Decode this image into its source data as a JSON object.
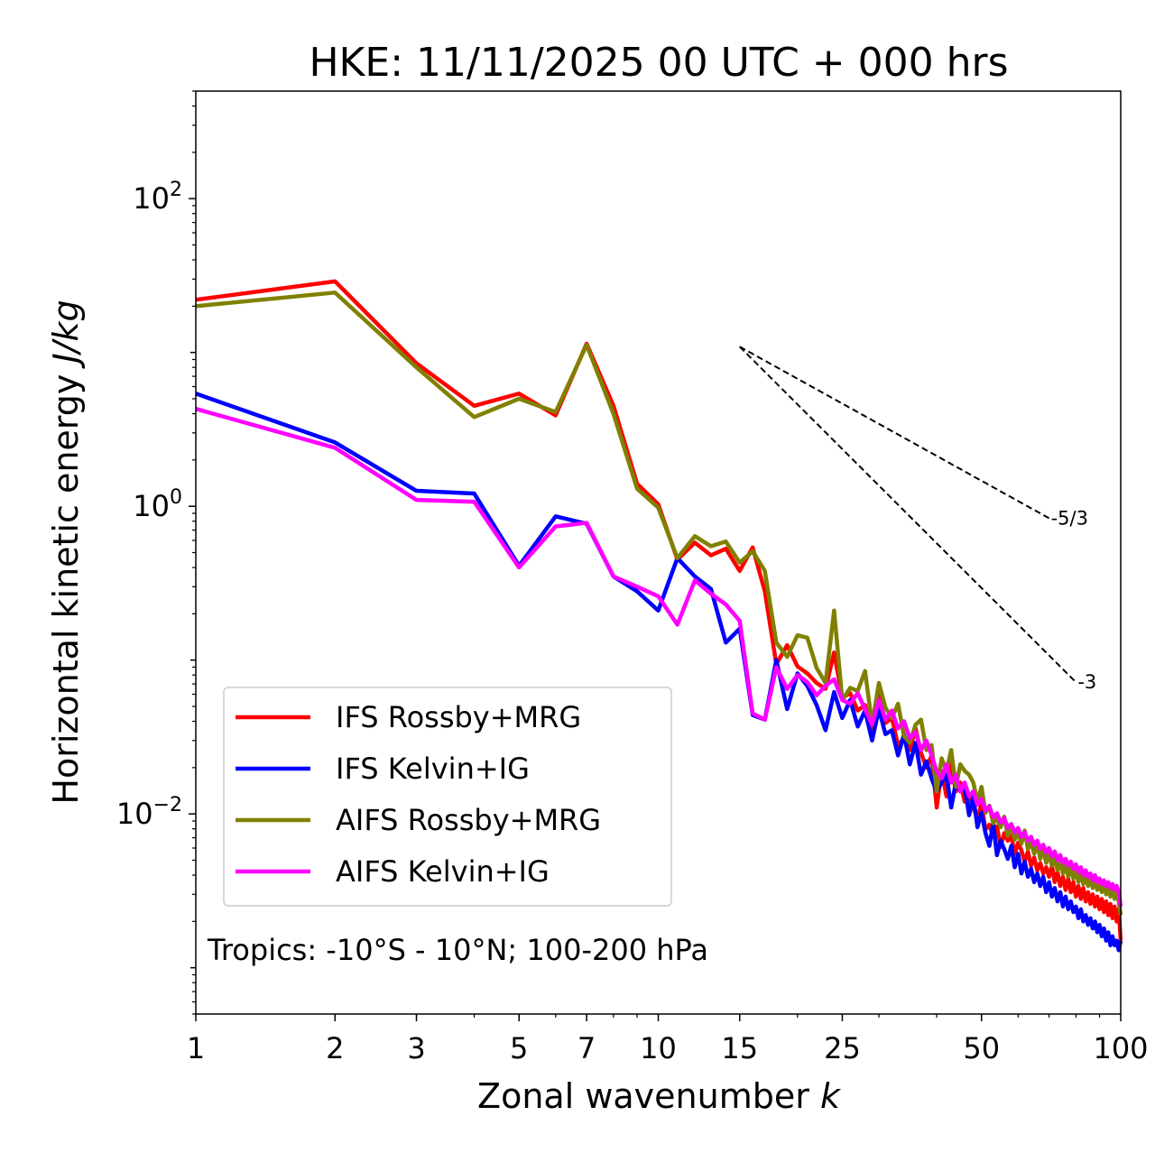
{
  "chart_data": {
    "type": "line",
    "scale": "log-log",
    "title": "HKE: 11/11/2025 00 UTC + 000 hrs",
    "xlabel_text": "Zonal wavenumber ",
    "xlabel_var": "k",
    "ylabel_text": "Horizontal kinetic energy ",
    "ylabel_units": "J/kg",
    "xlim": [
      1,
      100
    ],
    "ylim": [
      0.0005,
      500
    ],
    "x_ticks": [
      {
        "value": 1,
        "label": "1"
      },
      {
        "value": 2,
        "label": "2"
      },
      {
        "value": 3,
        "label": "3"
      },
      {
        "value": 5,
        "label": "5"
      },
      {
        "value": 7,
        "label": "7"
      },
      {
        "value": 10,
        "label": "10"
      },
      {
        "value": 15,
        "label": "15"
      },
      {
        "value": 25,
        "label": "25"
      },
      {
        "value": 50,
        "label": "50"
      },
      {
        "value": 100,
        "label": "100"
      }
    ],
    "y_ticks": [
      {
        "value": 0.01,
        "base": "10",
        "exp": "−2"
      },
      {
        "value": 1,
        "base": "10",
        "exp": "0"
      },
      {
        "value": 100,
        "base": "10",
        "exp": "2"
      }
    ],
    "annotation": "Tropics: -10°S - 10°N; 100-200 hPa",
    "reference_lines": [
      {
        "label": "-5/3",
        "slope": -1.6667,
        "x_start": 15,
        "x_end": 70,
        "y_start": 10.9
      },
      {
        "label": "-3",
        "slope": -3,
        "x_start": 15,
        "x_end": 80,
        "y_start": 10.9
      }
    ],
    "legend_location": "lower-left",
    "series": [
      {
        "name": "IFS Rossby+MRG",
        "color": "#ff0000",
        "values": [
          22.0,
          29.0,
          8.5,
          4.5,
          5.4,
          3.9,
          11.4,
          4.5,
          1.4,
          1.03,
          0.45,
          0.58,
          0.48,
          0.53,
          0.38,
          0.54,
          0.28,
          0.094,
          0.125,
          0.091,
          0.082,
          0.071,
          0.065,
          0.112,
          0.057,
          0.061,
          0.047,
          0.051,
          0.034,
          0.059,
          0.039,
          0.042,
          0.028,
          0.031,
          0.026,
          0.036,
          0.025,
          0.02,
          0.024,
          0.011,
          0.019,
          0.013,
          0.021,
          0.014,
          0.016,
          0.012,
          0.013,
          0.011,
          0.0093,
          0.0117,
          0.0079,
          0.0085,
          0.0071,
          0.0083,
          0.0061,
          0.0075,
          0.0067,
          0.0072,
          0.0055,
          0.0065,
          0.0058,
          0.0049,
          0.0057,
          0.0046,
          0.0052,
          0.0043,
          0.0048,
          0.0041,
          0.0045,
          0.0039,
          0.0046,
          0.0036,
          0.0042,
          0.0034,
          0.0039,
          0.0032,
          0.0038,
          0.0031,
          0.0036,
          0.0029,
          0.0034,
          0.0028,
          0.0033,
          0.0027,
          0.0031,
          0.0026,
          0.003,
          0.0025,
          0.0029,
          0.0024,
          0.0028,
          0.0023,
          0.0027,
          0.0022,
          0.0026,
          0.0021,
          0.0025,
          0.002,
          0.0024,
          0.0015
        ]
      },
      {
        "name": "IFS Kelvin+IG",
        "color": "#0000ff",
        "values": [
          5.4,
          2.6,
          1.26,
          1.21,
          0.41,
          0.86,
          0.77,
          0.35,
          0.28,
          0.21,
          0.46,
          0.35,
          0.29,
          0.13,
          0.16,
          0.044,
          0.041,
          0.1,
          0.048,
          0.082,
          0.068,
          0.051,
          0.035,
          0.062,
          0.042,
          0.055,
          0.037,
          0.047,
          0.03,
          0.048,
          0.033,
          0.035,
          0.024,
          0.033,
          0.021,
          0.029,
          0.018,
          0.022,
          0.017,
          0.014,
          0.016,
          0.018,
          0.011,
          0.016,
          0.014,
          0.015,
          0.0098,
          0.013,
          0.0082,
          0.0102,
          0.0075,
          0.0062,
          0.0087,
          0.0054,
          0.0067,
          0.0059,
          0.0051,
          0.0062,
          0.0045,
          0.0055,
          0.0041,
          0.0049,
          0.0039,
          0.0044,
          0.0036,
          0.0041,
          0.0034,
          0.0039,
          0.0031,
          0.0036,
          0.0029,
          0.0033,
          0.0027,
          0.0031,
          0.0025,
          0.0029,
          0.0024,
          0.0027,
          0.0023,
          0.0025,
          0.0021,
          0.0024,
          0.002,
          0.0022,
          0.0019,
          0.0021,
          0.0018,
          0.002,
          0.0017,
          0.0019,
          0.0016,
          0.0018,
          0.0015,
          0.0017,
          0.0014,
          0.0016,
          0.0014,
          0.0015,
          0.0013,
          0.0015
        ]
      },
      {
        "name": "AIFS Rossby+MRG",
        "color": "#808000",
        "values": [
          20.0,
          24.5,
          8.0,
          3.8,
          5.0,
          4.1,
          11.2,
          4.0,
          1.3,
          0.98,
          0.46,
          0.64,
          0.55,
          0.59,
          0.43,
          0.51,
          0.38,
          0.13,
          0.105,
          0.145,
          0.14,
          0.089,
          0.071,
          0.21,
          0.055,
          0.066,
          0.063,
          0.085,
          0.038,
          0.071,
          0.049,
          0.042,
          0.052,
          0.032,
          0.029,
          0.038,
          0.041,
          0.026,
          0.028,
          0.014,
          0.023,
          0.019,
          0.026,
          0.015,
          0.021,
          0.019,
          0.018,
          0.016,
          0.012,
          0.015,
          0.0102,
          0.0113,
          0.0087,
          0.0093,
          0.0082,
          0.0096,
          0.0072,
          0.0084,
          0.0068,
          0.0075,
          0.0064,
          0.0078,
          0.0059,
          0.0066,
          0.0055,
          0.0064,
          0.0051,
          0.0059,
          0.0048,
          0.0055,
          0.0046,
          0.0052,
          0.0043,
          0.0049,
          0.0041,
          0.0047,
          0.0039,
          0.0045,
          0.0038,
          0.0043,
          0.0036,
          0.0041,
          0.0035,
          0.004,
          0.0034,
          0.0038,
          0.0033,
          0.0037,
          0.0032,
          0.0036,
          0.0031,
          0.0035,
          0.003,
          0.0034,
          0.0029,
          0.0033,
          0.0028,
          0.0032,
          0.0027,
          0.0022
        ]
      },
      {
        "name": "AIFS Kelvin+IG",
        "color": "#ff00ff",
        "values": [
          4.3,
          2.4,
          1.1,
          1.07,
          0.4,
          0.74,
          0.78,
          0.35,
          0.3,
          0.26,
          0.17,
          0.33,
          0.27,
          0.23,
          0.18,
          0.045,
          0.041,
          0.09,
          0.065,
          0.08,
          0.072,
          0.059,
          0.068,
          0.075,
          0.055,
          0.052,
          0.061,
          0.048,
          0.038,
          0.055,
          0.041,
          0.047,
          0.036,
          0.04,
          0.031,
          0.034,
          0.026,
          0.03,
          0.024,
          0.019,
          0.017,
          0.021,
          0.016,
          0.018,
          0.014,
          0.016,
          0.013,
          0.014,
          0.0115,
          0.0125,
          0.0105,
          0.0112,
          0.0095,
          0.0101,
          0.0088,
          0.0094,
          0.0081,
          0.0086,
          0.0076,
          0.0081,
          0.0071,
          0.0076,
          0.0067,
          0.0071,
          0.0063,
          0.0067,
          0.0059,
          0.0063,
          0.0056,
          0.006,
          0.0053,
          0.0057,
          0.005,
          0.0054,
          0.0048,
          0.0051,
          0.0046,
          0.0049,
          0.0044,
          0.0047,
          0.0042,
          0.0045,
          0.004,
          0.0043,
          0.0039,
          0.0041,
          0.0037,
          0.004,
          0.0036,
          0.0038,
          0.0035,
          0.0037,
          0.0034,
          0.0036,
          0.0033,
          0.0035,
          0.0032,
          0.0034,
          0.0031,
          0.0025
        ]
      }
    ]
  }
}
